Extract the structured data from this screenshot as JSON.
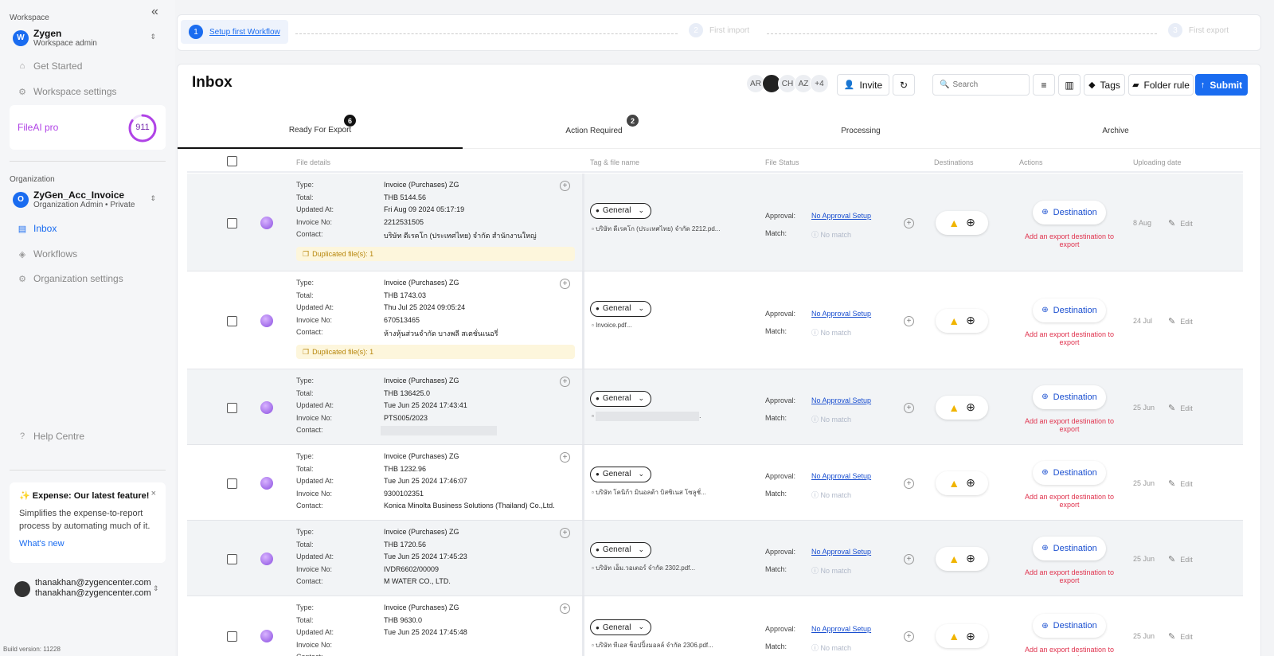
{
  "sidebar": {
    "workspace_label": "Workspace",
    "workspace": {
      "initial": "W",
      "name": "Zygen",
      "role": "Workspace admin"
    },
    "nav_top": [
      {
        "label": "Get Started",
        "icon": "home-icon"
      },
      {
        "label": "Workspace settings",
        "icon": "gear-icon"
      }
    ],
    "plan": {
      "name": "FileAI pro",
      "credits": "911",
      "progress": 0.85
    },
    "organization_label": "Organization",
    "organization": {
      "initial": "O",
      "name": "ZyGen_Acc_Invoice",
      "role": "Organization Admin • Private"
    },
    "nav_org": [
      {
        "label": "Inbox",
        "icon": "inbox-icon",
        "active": true
      },
      {
        "label": "Workflows",
        "icon": "layers-icon"
      },
      {
        "label": "Organization settings",
        "icon": "gear-icon"
      }
    ],
    "help": "Help Centre",
    "promo": {
      "title": "✨ Expense: Our latest feature!",
      "body": "Simplifies the expense-to-report process by automating much of it.",
      "link": "What's new"
    },
    "user": {
      "name": "thanakhan@zygencenter.com",
      "email": "thanakhan@zygencenter.com"
    },
    "build": "Build version: 11228"
  },
  "steps": [
    {
      "n": "1",
      "label": "Setup first Workflow",
      "current": true
    },
    {
      "n": "2",
      "label": "First import"
    },
    {
      "n": "3",
      "label": "First export"
    }
  ],
  "inbox": {
    "title": "Inbox",
    "avatars": [
      "AR",
      "",
      "CH",
      "AZ",
      "+4"
    ],
    "invite": "Invite",
    "search_placeholder": "Search",
    "tags": "Tags",
    "folder_rule": "Folder rule",
    "submit": "Submit"
  },
  "tabs": [
    {
      "label": "Ready For Export",
      "badge": "6"
    },
    {
      "label": "Action Required",
      "badge": "2"
    },
    {
      "label": "Processing",
      "badge": ""
    },
    {
      "label": "Archive",
      "badge": ""
    }
  ],
  "columns": {
    "file_details": "File details",
    "tag": "Tag & file name",
    "status": "File Status",
    "destinations": "Destinations",
    "actions": "Actions",
    "date": "Uploading date"
  },
  "labels": {
    "type": "Type:",
    "total": "Total:",
    "updated": "Updated At:",
    "invoice": "Invoice No:",
    "contact": "Contact:",
    "approval": "Approval:",
    "match": "Match:",
    "no_approval": "No Approval Setup",
    "no_match": "No match",
    "destination": "Destination",
    "add_export": "Add an export destination to export",
    "edit": "Edit",
    "general": "General"
  },
  "rows": [
    {
      "type": "Invoice (Purchases) ZG",
      "total": "THB 5144.56",
      "updated": "Fri Aug 09 2024 05:17:19",
      "invoice": "2212531505",
      "contact": "บริษัท ดีเรคโก (ประเทศไทย) จำกัด สำนักงานใหญ่",
      "dup": "Duplicated file(s): 1",
      "file": "บริษัท ดีเรคโก (ประเทศไทย) จำกัด 2212.pd...",
      "date": "8 Aug"
    },
    {
      "type": "Invoice (Purchases) ZG",
      "total": "THB 1743.03",
      "updated": "Thu Jul 25 2024 09:05:24",
      "invoice": "670513465",
      "contact": "ห้างหุ้นส่วนจำกัด บางพลี สเตชั่นเนอรี่",
      "dup": "Duplicated file(s): 1",
      "file": "Invoice.pdf...",
      "date": "24 Jul"
    },
    {
      "type": "Invoice (Purchases) ZG",
      "total": "THB 136425.0",
      "updated": "Tue Jun 25 2024 17:43:41",
      "invoice": "PTS005/2023",
      "contact": "",
      "dup": "",
      "file": "",
      "date": "25 Jun"
    },
    {
      "type": "Invoice (Purchases) ZG",
      "total": "THB 1232.96",
      "updated": "Tue Jun 25 2024 17:46:07",
      "invoice": "9300102351",
      "contact": "Konica Minolta Business Solutions (Thailand) Co.,Ltd.",
      "dup": "",
      "file": "บริษัท โคนิก้า มินอลต้า บิสซิเนส โซลูชั่...",
      "date": "25 Jun"
    },
    {
      "type": "Invoice (Purchases) ZG",
      "total": "THB 1720.56",
      "updated": "Tue Jun 25 2024 17:45:23",
      "invoice": "IVDR6602/00009",
      "contact": "M WATER CO., LTD.",
      "dup": "",
      "file": "บริษัท เอ็ม.วอเตอร์ จำกัด 2302.pdf...",
      "date": "25 Jun"
    },
    {
      "type": "Invoice (Purchases) ZG",
      "total": "THB 9630.0",
      "updated": "Tue Jun 25 2024 17:45:48",
      "invoice": "",
      "contact": "",
      "dup": "",
      "file": "บริษัท ทีเอส ช็อปปิ้งมอลล์ จำกัด 2306.pdf...",
      "date": "25 Jun"
    }
  ]
}
